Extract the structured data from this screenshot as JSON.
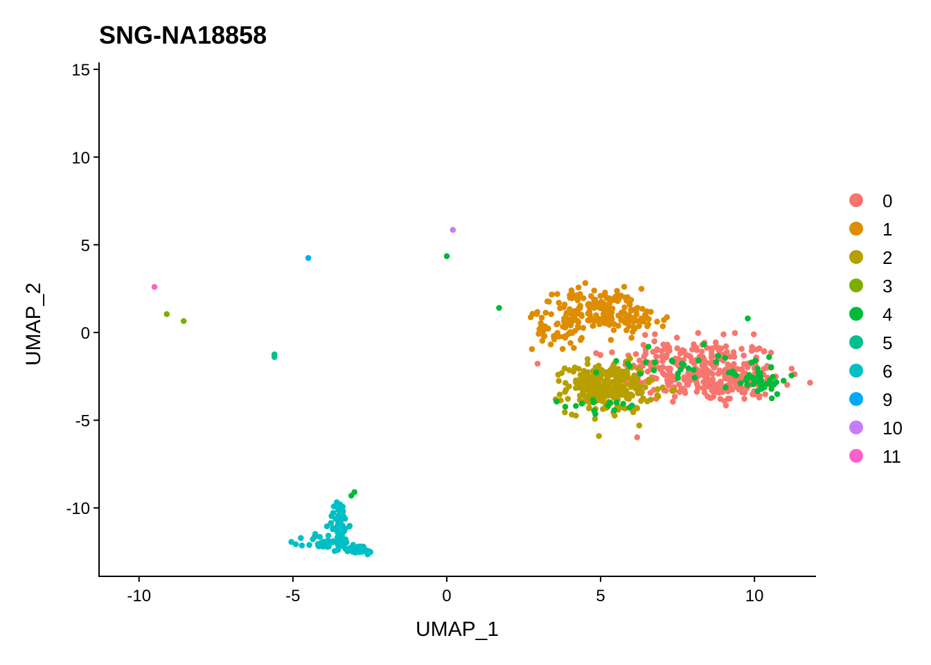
{
  "chart_data": {
    "type": "scatter",
    "title": "SNG-NA18858",
    "xlabel": "UMAP_1",
    "ylabel": "UMAP_2",
    "xlim": [
      -11.3,
      12.0
    ],
    "ylim": [
      -13.9,
      15.4
    ],
    "xticks": [
      -10,
      -5,
      0,
      5,
      10
    ],
    "yticks": [
      -10,
      -5,
      0,
      5,
      10,
      15
    ],
    "grid": false,
    "legend_position": "right",
    "series": [
      {
        "name": "0",
        "color": "#F8766D",
        "clusters": [
          {
            "cx": 8.2,
            "cy": -2.2,
            "sx": 1.3,
            "sy": 0.9,
            "n": 260
          },
          {
            "cx": 9.6,
            "cy": -3.0,
            "sx": 0.7,
            "sy": 0.5,
            "n": 60
          },
          {
            "cx": 7.2,
            "cy": -1.0,
            "sx": 0.5,
            "sy": 0.5,
            "n": 30
          }
        ]
      },
      {
        "name": "1",
        "color": "#DE8C00",
        "clusters": [
          {
            "cx": 4.6,
            "cy": 1.3,
            "sx": 0.8,
            "sy": 0.6,
            "n": 130
          },
          {
            "cx": 6.0,
            "cy": 0.8,
            "sx": 0.6,
            "sy": 0.4,
            "n": 60
          },
          {
            "cx": 3.6,
            "cy": 0.0,
            "sx": 0.4,
            "sy": 0.5,
            "n": 40
          }
        ]
      },
      {
        "name": "2",
        "color": "#B79F00",
        "clusters": [
          {
            "cx": 5.3,
            "cy": -3.2,
            "sx": 0.7,
            "sy": 0.7,
            "n": 230
          },
          {
            "cx": 4.5,
            "cy": -2.7,
            "sx": 0.3,
            "sy": 0.4,
            "n": 30
          }
        ]
      },
      {
        "name": "3",
        "color": "#7CAE00",
        "points": [
          [
            -9.1,
            1.05
          ],
          [
            -8.55,
            0.65
          ]
        ]
      },
      {
        "name": "4",
        "color": "#00BA38",
        "points": [
          [
            0.0,
            4.35
          ],
          [
            1.7,
            1.4
          ],
          [
            -3.0,
            -9.1
          ],
          [
            -3.1,
            -9.3
          ]
        ],
        "clusters": [
          {
            "cx": 10.1,
            "cy": -2.7,
            "sx": 0.5,
            "sy": 0.4,
            "n": 40
          },
          {
            "cx": 7.8,
            "cy": -1.6,
            "sx": 1.2,
            "sy": 0.7,
            "n": 30
          },
          {
            "cx": 5.4,
            "cy": -4.2,
            "sx": 0.8,
            "sy": 0.2,
            "n": 15
          }
        ]
      },
      {
        "name": "5",
        "color": "#00C08B",
        "points": [
          [
            -5.6,
            -1.25
          ],
          [
            -5.6,
            -1.4
          ]
        ]
      },
      {
        "name": "6",
        "color": "#00BFC4",
        "clusters": [
          {
            "cx": -3.5,
            "cy": -10.9,
            "sx": 0.15,
            "sy": 0.7,
            "n": 50
          },
          {
            "cx": -3.8,
            "cy": -12.0,
            "sx": 0.4,
            "sy": 0.25,
            "n": 40
          },
          {
            "cx": -2.9,
            "cy": -12.4,
            "sx": 0.3,
            "sy": 0.15,
            "n": 30
          }
        ]
      },
      {
        "name": "9",
        "color": "#00A9FF",
        "points": [
          [
            -4.5,
            4.25
          ]
        ]
      },
      {
        "name": "10",
        "color": "#C77CFF",
        "points": [
          [
            0.2,
            5.85
          ]
        ]
      },
      {
        "name": "11",
        "color": "#FF61CC",
        "points": [
          [
            -9.5,
            2.6
          ]
        ]
      }
    ]
  }
}
